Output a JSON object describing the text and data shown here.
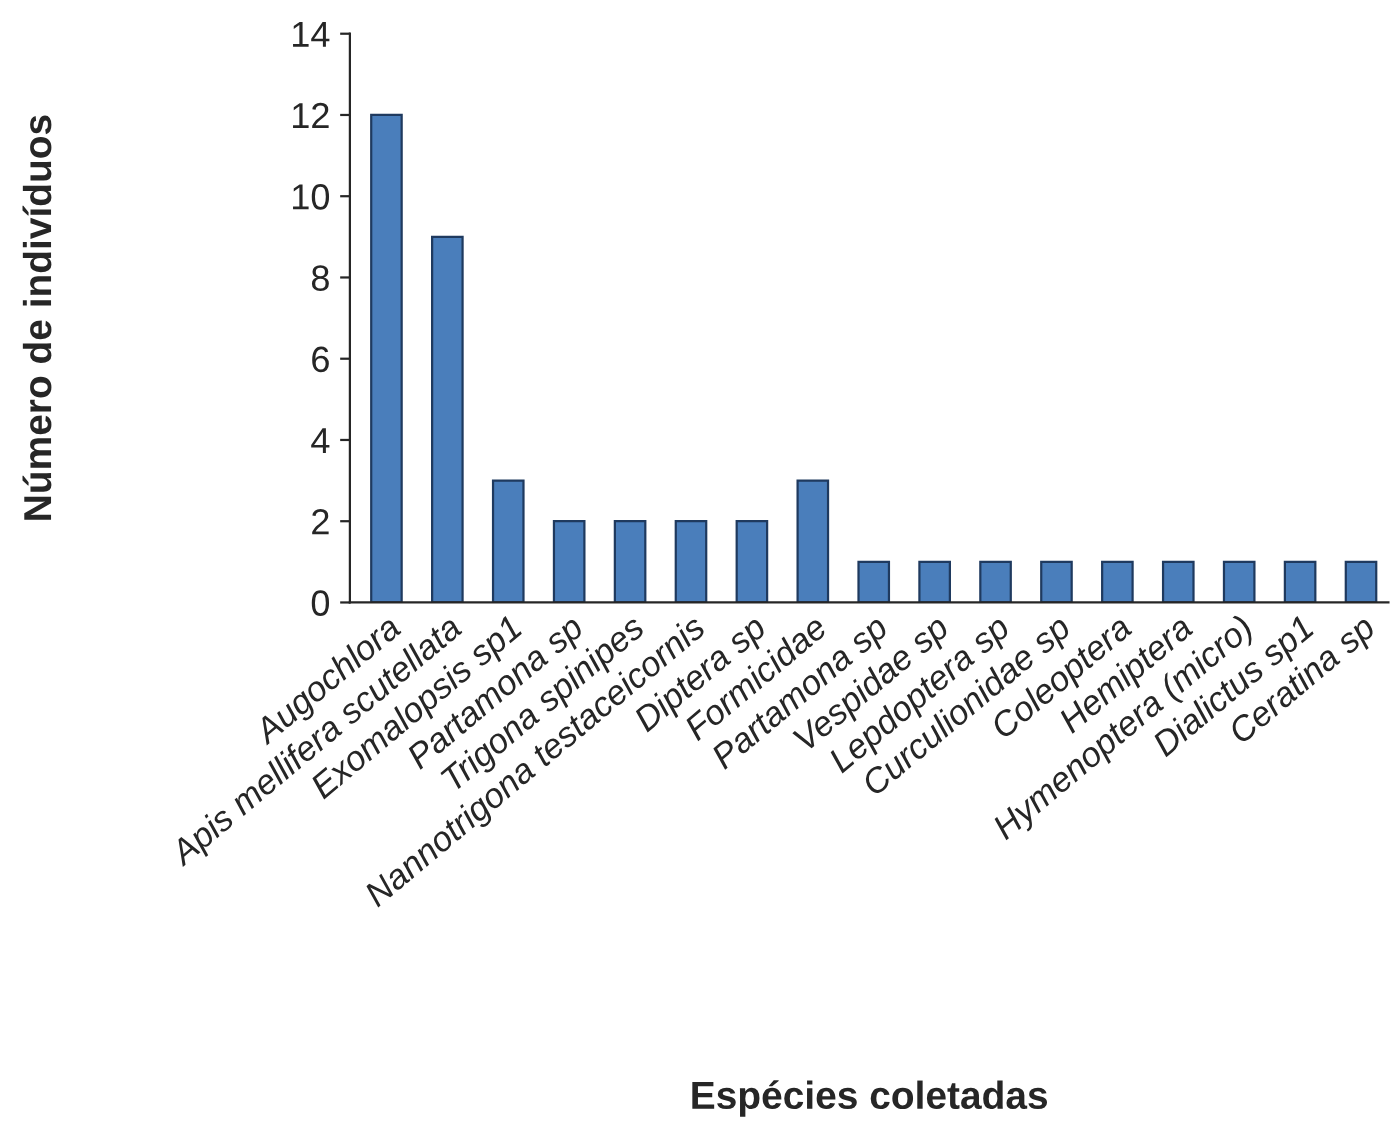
{
  "chart_data": {
    "type": "bar",
    "xlabel": "Espécies coletadas",
    "ylabel": "Número de indivíduos",
    "categories": [
      "Augochlora",
      "Apis mellifera scutellata",
      "Exomalopsis sp1",
      "Partamona sp",
      "Trigona spinipes",
      "Nannotrigona testaceicornis",
      "Diptera sp",
      "Formicidae",
      "Partamona sp",
      "Vespidae sp",
      "Lepdoptera sp",
      "Curculionidae sp",
      "Coleoptera",
      "Hemiptera",
      "Hymenoptera (micro)",
      "Dialictus sp1",
      "Ceratina sp"
    ],
    "values": [
      12,
      9,
      3,
      2,
      2,
      2,
      2,
      3,
      1,
      1,
      1,
      1,
      1,
      1,
      1,
      1,
      1
    ],
    "color": "#4a7ebb",
    "ylim": [
      0,
      14
    ],
    "yticks": [
      0,
      2,
      4,
      6,
      8,
      10,
      12,
      14
    ],
    "grid": false,
    "legend": false
  }
}
